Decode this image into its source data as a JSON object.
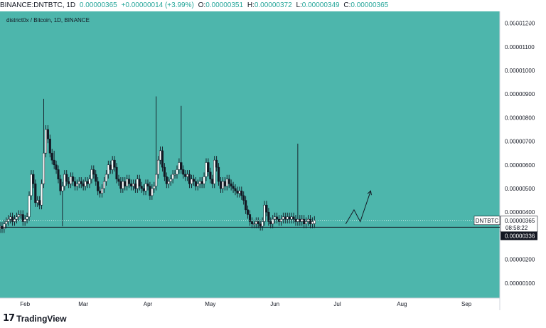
{
  "header": {
    "symbol": "BINANCE:DNTBTC, 1D",
    "change_label": "0.00000365",
    "change_value": "+0.00000014 (+3.99%)",
    "open_label": "O:",
    "open_value": "0.00000351",
    "high_label": "H:",
    "high_value": "0.00000372",
    "low_label": "L:",
    "low_value": "0.00000349",
    "close_label": "C:",
    "close_value": "0.00000365"
  },
  "footer": {
    "brand": "TradingView",
    "brand_mark": "17"
  },
  "colors": {
    "background": "#4db6ac",
    "axis_bg": "#ffffff",
    "bull": "#ffffff",
    "bear": "#131722",
    "line": "#131722"
  },
  "chart_data": {
    "type": "candlestick",
    "title": "district0x / Bitcoin, 1D, BINANCE",
    "currency_badge": "BTC",
    "y_ticks": [
      "0.00000100",
      "0.00000200",
      "0.00000300",
      "0.00000400",
      "0.00000500",
      "0.00000600",
      "0.00000700",
      "0.00000800",
      "0.00000900",
      "0.00001000",
      "0.00001100",
      "0.00001200"
    ],
    "y_tick_values": [
      1.0,
      2.0,
      3.0,
      4.0,
      5.0,
      6.0,
      7.0,
      8.0,
      9.0,
      10.0,
      11.0,
      12.0
    ],
    "y_unit_scale": "1e-6",
    "ylim": [
      0.36,
      12.5
    ],
    "x_ticks": [
      {
        "label": "Feb",
        "day": 31
      },
      {
        "label": "Mar",
        "day": 59
      },
      {
        "label": "Apr",
        "day": 90
      },
      {
        "label": "May",
        "day": 120
      },
      {
        "label": "Jun",
        "day": 151
      },
      {
        "label": "Jul",
        "day": 181
      },
      {
        "label": "Aug",
        "day": 212
      },
      {
        "label": "Sep",
        "day": 243
      }
    ],
    "xlim": [
      19,
      259
    ],
    "start_day": 19,
    "closes": [
      3.4,
      3.3,
      3.5,
      3.6,
      3.7,
      3.8,
      3.6,
      3.7,
      3.8,
      3.9,
      3.9,
      3.6,
      3.7,
      3.8,
      4.7,
      5.6,
      5.2,
      4.4,
      4.5,
      4.3,
      5.2,
      6.5,
      7.5,
      7.1,
      6.5,
      6.2,
      6.0,
      5.8,
      5.4,
      4.9,
      5.1,
      5.6,
      5.3,
      5.2,
      5.5,
      5.3,
      5.1,
      5.2,
      5.3,
      5.2,
      5.1,
      5.3,
      5.2,
      5.4,
      5.8,
      5.6,
      5.3,
      4.9,
      4.8,
      5.0,
      5.3,
      5.6,
      6.0,
      5.8,
      6.2,
      5.9,
      5.4,
      5.3,
      5.0,
      5.3,
      5.1,
      5.4,
      5.2,
      5.1,
      5.2,
      5.0,
      5.4,
      5.1,
      5.0,
      4.9,
      5.2,
      5.1,
      4.7,
      5.0,
      5.1,
      5.6,
      6.2,
      6.6,
      5.9,
      5.5,
      5.2,
      5.3,
      5.4,
      5.6,
      5.6,
      5.8,
      6.1,
      5.8,
      5.6,
      5.5,
      5.6,
      5.2,
      5.4,
      5.3,
      5.1,
      5.2,
      5.3,
      5.2,
      5.5,
      6.1,
      5.7,
      5.4,
      5.2,
      6.2,
      5.9,
      5.3,
      5.0,
      5.3,
      5.1,
      5.4,
      5.2,
      5.1,
      5.0,
      4.9,
      4.8,
      4.9,
      4.7,
      4.5,
      4.1,
      3.9,
      3.6,
      3.5,
      3.5,
      3.6,
      3.5,
      3.4,
      3.6,
      4.3,
      4.0,
      3.6,
      3.5,
      3.7,
      3.8,
      3.7,
      3.6,
      3.7,
      3.8,
      3.7,
      3.8,
      3.7,
      3.8,
      3.7,
      3.6,
      3.7,
      3.6,
      3.7,
      3.5,
      3.6,
      3.7,
      3.5,
      3.6,
      3.65
    ],
    "opens": [
      3.3,
      3.4,
      3.3,
      3.5,
      3.6,
      3.7,
      3.8,
      3.6,
      3.7,
      3.8,
      3.9,
      3.9,
      3.6,
      3.7,
      3.8,
      4.7,
      5.6,
      5.2,
      4.4,
      4.5,
      4.3,
      5.2,
      6.5,
      7.5,
      7.1,
      6.5,
      6.2,
      6.0,
      5.8,
      5.4,
      4.9,
      5.1,
      5.6,
      5.3,
      5.2,
      5.5,
      5.3,
      5.1,
      5.2,
      5.3,
      5.2,
      5.1,
      5.3,
      5.2,
      5.4,
      5.8,
      5.6,
      5.3,
      4.9,
      4.8,
      5.0,
      5.3,
      5.6,
      6.0,
      5.8,
      6.2,
      5.9,
      5.4,
      5.3,
      5.0,
      5.3,
      5.1,
      5.4,
      5.2,
      5.1,
      5.2,
      5.0,
      5.4,
      5.1,
      5.0,
      4.9,
      5.2,
      5.1,
      4.7,
      5.0,
      5.1,
      5.6,
      6.2,
      6.6,
      5.9,
      5.5,
      5.2,
      5.3,
      5.4,
      5.6,
      5.6,
      5.8,
      6.1,
      5.8,
      5.6,
      5.5,
      5.6,
      5.2,
      5.4,
      5.3,
      5.1,
      5.2,
      5.3,
      5.2,
      5.5,
      6.1,
      5.7,
      5.4,
      5.2,
      6.2,
      5.9,
      5.3,
      5.0,
      5.3,
      5.1,
      5.4,
      5.2,
      5.1,
      5.0,
      4.9,
      4.8,
      4.9,
      4.7,
      4.5,
      4.1,
      3.9,
      3.6,
      3.5,
      3.5,
      3.6,
      3.5,
      3.4,
      3.6,
      4.3,
      4.0,
      3.6,
      3.5,
      3.7,
      3.8,
      3.7,
      3.6,
      3.7,
      3.8,
      3.7,
      3.8,
      3.7,
      3.8,
      3.7,
      3.6,
      3.7,
      3.6,
      3.7,
      3.5,
      3.6,
      3.7,
      3.5,
      3.51
    ],
    "spikes": [
      {
        "index": 21,
        "high": 8.8
      },
      {
        "index": 26,
        "high": 6.6
      },
      {
        "index": 30,
        "high": 4.0,
        "low_spike": true
      },
      {
        "index": 75,
        "high": 8.9
      },
      {
        "index": 87,
        "high": 8.5
      },
      {
        "index": 143,
        "high": 6.9
      },
      {
        "index": 159,
        "high": 6.2
      }
    ],
    "last_price": "0.00000365",
    "last_price_value": 3.65,
    "countdown": "08:58:22",
    "symbol_tag": "DNTBTC",
    "support_level": "0.00000336",
    "support_value": 3.36,
    "projection": [
      {
        "day": 185,
        "value": 3.5
      },
      {
        "day": 189,
        "value": 4.1
      },
      {
        "day": 192,
        "value": 3.6
      },
      {
        "day": 197,
        "value": 4.9
      }
    ]
  }
}
